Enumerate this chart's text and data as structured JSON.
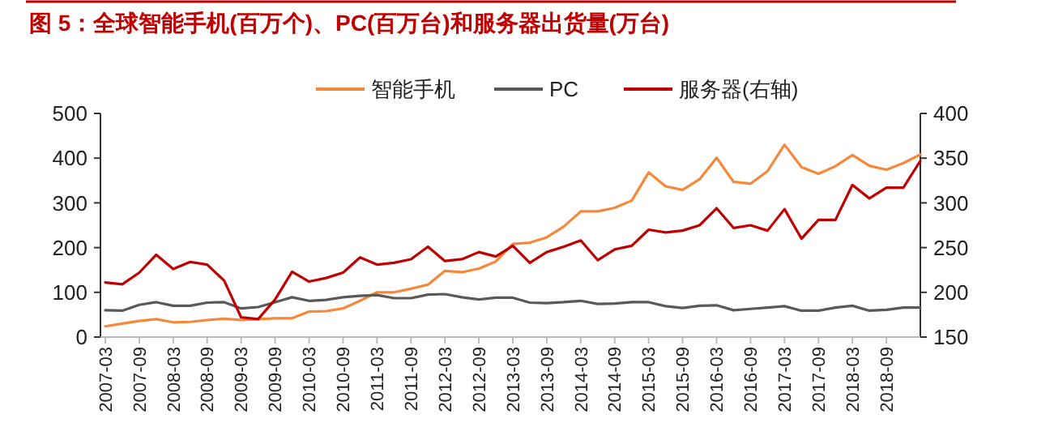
{
  "chart_data": {
    "type": "line",
    "title": "图 5：全球智能手机(百万个)、PC(百万台)和服务器出货量(万台)",
    "categories": [
      "2007-03",
      null,
      "2007-09",
      null,
      "2008-03",
      null,
      "2008-09",
      null,
      "2009-03",
      null,
      "2009-09",
      null,
      "2010-03",
      null,
      "2010-09",
      null,
      "2011-03",
      null,
      "2011-09",
      null,
      "2012-03",
      null,
      "2012-09",
      null,
      "2013-03",
      null,
      "2013-09",
      null,
      "2014-03",
      null,
      "2014-09",
      null,
      "2015-03",
      null,
      "2015-09",
      null,
      "2016-03",
      null,
      "2016-09",
      null,
      "2017-03",
      null,
      "2017-09",
      null,
      "2018-03",
      null,
      "2018-09",
      null,
      null
    ],
    "series": [
      {
        "name": "智能手机",
        "color": "#f5883a",
        "values": [
          24,
          30,
          36,
          40,
          33,
          34,
          38,
          41,
          38,
          40,
          42,
          42,
          57,
          58,
          64,
          81,
          100,
          100,
          108,
          117,
          148,
          145,
          153,
          169,
          208,
          211,
          223,
          247,
          281,
          281,
          289,
          305,
          368,
          337,
          329,
          353,
          401,
          347,
          343,
          371,
          430,
          380,
          365,
          382,
          407,
          383,
          374,
          389,
          408
        ]
      },
      {
        "name": "PC",
        "color": "#595959",
        "values": [
          60,
          59,
          72,
          78,
          70,
          70,
          77,
          78,
          64,
          67,
          78,
          89,
          81,
          83,
          89,
          92,
          94,
          87,
          87,
          95,
          96,
          89,
          84,
          88,
          88,
          77,
          76,
          78,
          81,
          74,
          75,
          78,
          78,
          69,
          65,
          70,
          71,
          60,
          63,
          66,
          69,
          59,
          59,
          66,
          70,
          59,
          61,
          66,
          66
        ]
      },
      {
        "name": "服务器(右轴)",
        "color": "#c00000",
        "axis": "y2",
        "values": [
          211,
          209,
          222,
          242,
          226,
          234,
          231,
          213,
          172,
          170,
          192,
          223,
          212,
          216,
          222,
          239,
          231,
          233,
          237,
          251,
          235,
          237,
          245,
          240,
          252,
          233,
          245,
          251,
          258,
          236,
          248,
          252,
          270,
          267,
          269,
          275,
          294,
          272,
          275,
          269,
          293,
          260,
          281,
          281,
          320,
          305,
          317,
          317,
          347
        ]
      }
    ],
    "ylim": [
      0,
      500
    ],
    "yticks": [
      0,
      100,
      200,
      300,
      400,
      500
    ],
    "y2lim": [
      150,
      400
    ],
    "y2ticks": [
      150,
      200,
      250,
      300,
      350,
      400
    ],
    "legend": "top",
    "grid": false,
    "line_style": "solid"
  }
}
